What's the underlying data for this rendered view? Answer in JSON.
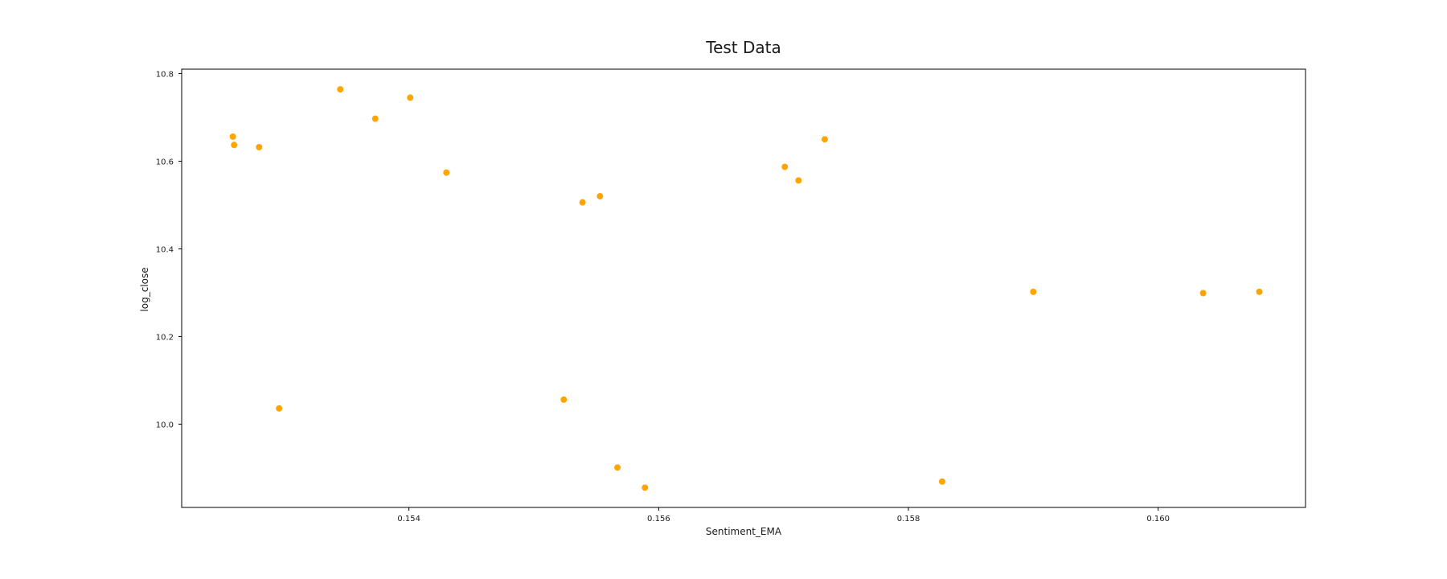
{
  "chart_data": {
    "type": "scatter",
    "title": "Test Data",
    "xlabel": "Sentiment_EMA",
    "ylabel": "log_close",
    "xlim": [
      0.15218,
      0.16118
    ],
    "ylim": [
      9.81,
      10.81
    ],
    "x_ticks": [
      0.154,
      0.156,
      0.158,
      0.16
    ],
    "x_tick_labels": [
      "0.154",
      "0.156",
      "0.158",
      "0.160"
    ],
    "y_ticks": [
      10.0,
      10.2,
      10.4,
      10.6,
      10.8
    ],
    "y_tick_labels": [
      "10.0",
      "10.2",
      "10.4",
      "10.6",
      "10.8"
    ],
    "grid": false,
    "legend": "none",
    "marker_color": "#FFA500",
    "series": [
      {
        "points": [
          {
            "x": 0.15259,
            "y": 10.656
          },
          {
            "x": 0.1526,
            "y": 10.637
          },
          {
            "x": 0.1528,
            "y": 10.632
          },
          {
            "x": 0.15296,
            "y": 10.036
          },
          {
            "x": 0.15345,
            "y": 10.764
          },
          {
            "x": 0.15373,
            "y": 10.697
          },
          {
            "x": 0.15401,
            "y": 10.745
          },
          {
            "x": 0.1543,
            "y": 10.574
          },
          {
            "x": 0.15524,
            "y": 10.056
          },
          {
            "x": 0.15539,
            "y": 10.506
          },
          {
            "x": 0.15553,
            "y": 10.52
          },
          {
            "x": 0.15567,
            "y": 9.901
          },
          {
            "x": 0.15589,
            "y": 9.855
          },
          {
            "x": 0.15701,
            "y": 10.587
          },
          {
            "x": 0.15712,
            "y": 10.556
          },
          {
            "x": 0.15733,
            "y": 10.65
          },
          {
            "x": 0.15827,
            "y": 9.869
          },
          {
            "x": 0.159,
            "y": 10.302
          },
          {
            "x": 0.16036,
            "y": 10.299
          },
          {
            "x": 0.16081,
            "y": 10.302
          }
        ]
      }
    ]
  }
}
